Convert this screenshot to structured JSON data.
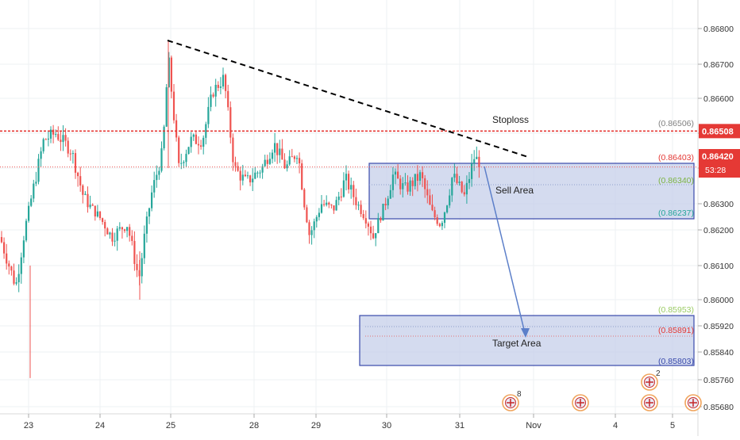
{
  "chart_data": {
    "type": "candlestick",
    "symbol_hint": "",
    "y_axis": {
      "range": [
        0.8566,
        0.8688
      ],
      "ticks": [
        "0.86800",
        "0.86700",
        "0.86600",
        "0.86500",
        "0.86400",
        "0.86300",
        "0.86200",
        "0.86100",
        "0.86000",
        "0.85920",
        "0.85840",
        "0.85760",
        "0.85680"
      ],
      "tick_values": [
        0.868,
        0.867,
        0.866,
        0.865,
        0.864,
        0.863,
        0.862,
        0.861,
        0.86,
        0.8592,
        0.8584,
        0.8576,
        0.8568
      ]
    },
    "x_axis": {
      "ticks": [
        "23",
        "24",
        "25",
        "28",
        "29",
        "30",
        "31",
        "Nov",
        "4",
        "5"
      ]
    },
    "price_badges": {
      "stoploss_price": "0.86508",
      "last_price": "0.86420",
      "countdown": "53:28"
    },
    "levels": [
      {
        "label": "(0.86506)",
        "value": 0.86506,
        "color": "#808080"
      },
      {
        "label": "(0.86403)",
        "value": 0.86403,
        "color": "#e53935"
      },
      {
        "label": "(0.86340)",
        "value": 0.8634,
        "color": "#7cb342"
      },
      {
        "label": "(0.86237)",
        "value": 0.86237,
        "color": "#26a69a"
      },
      {
        "label": "(0.85953)",
        "value": 0.85953,
        "color": "#9ccc65"
      },
      {
        "label": "(0.85891)",
        "value": 0.85891,
        "color": "#e53935"
      },
      {
        "label": "(0.85803)",
        "value": 0.85803,
        "color": "#3949ab"
      }
    ],
    "annotations": {
      "stoploss": "Stoploss",
      "sell_area": "Sell Area",
      "target_area": "Target Area"
    },
    "event_badges": [
      "8",
      "2"
    ],
    "colors": {
      "up": "#26a69a",
      "down": "#ef5350",
      "stoploss_line": "#e53935",
      "zone_fill": "#c5cfea",
      "zone_border": "#3949ab",
      "trendline": "#000000",
      "arrow": "#5c7fc9"
    },
    "grid": true,
    "candles_sample": [
      {
        "o": 0.8621,
        "h": 0.863,
        "l": 0.86,
        "c": 0.8606
      },
      {
        "o": 0.8606,
        "h": 0.8622,
        "l": 0.8592,
        "c": 0.8618
      },
      {
        "o": 0.864,
        "h": 0.8651,
        "l": 0.8628,
        "c": 0.8646
      },
      {
        "o": 0.8662,
        "h": 0.8677,
        "l": 0.8651,
        "c": 0.8673
      },
      {
        "o": 0.8648,
        "h": 0.866,
        "l": 0.863,
        "c": 0.8638
      },
      {
        "o": 0.8633,
        "h": 0.8646,
        "l": 0.8618,
        "c": 0.8626
      },
      {
        "o": 0.8639,
        "h": 0.865,
        "l": 0.8627,
        "c": 0.8643
      }
    ]
  }
}
